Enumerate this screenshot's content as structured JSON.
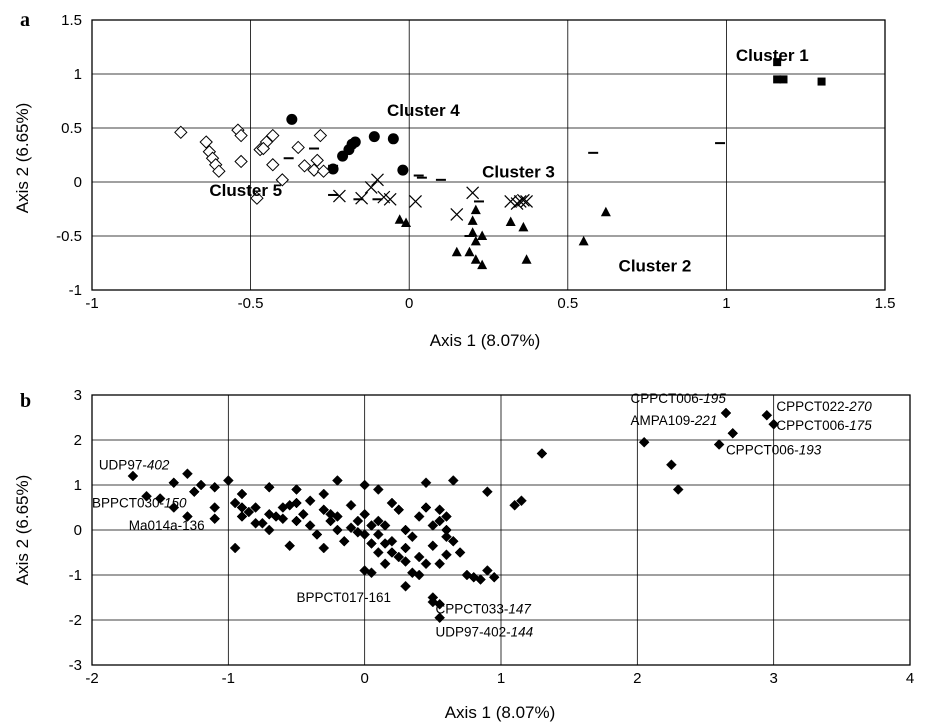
{
  "chart_data": [
    {
      "panel": "a",
      "type": "scatter",
      "xlabel": "Axis 1 (8.07%)",
      "ylabel": "Axis 2 (6.65%)",
      "xlim": [
        -1,
        1.5
      ],
      "ylim": [
        -1,
        1.5
      ],
      "xticks": [
        -1,
        -0.5,
        0,
        0.5,
        1,
        1.5
      ],
      "yticks": [
        -1,
        -0.5,
        0,
        0.5,
        1,
        1.5
      ],
      "xtick_labels": [
        "-1",
        "-0.5",
        "0",
        "0.5",
        "1",
        "1.5"
      ],
      "ytick_labels": [
        "-1",
        "-0.5",
        "0",
        "0.5",
        "1",
        "1.5"
      ],
      "grid": true,
      "series": [
        {
          "name": "Cluster 1",
          "marker": "square",
          "points": [
            [
              1.16,
              1.11
            ],
            [
              1.16,
              0.95
            ],
            [
              1.18,
              0.95
            ],
            [
              1.3,
              0.93
            ]
          ]
        },
        {
          "name": "Cluster 2",
          "marker": "triangle",
          "points": [
            [
              0.55,
              -0.55
            ],
            [
              0.62,
              -0.28
            ],
            [
              0.37,
              -0.72
            ],
            [
              0.36,
              -0.42
            ],
            [
              0.32,
              -0.37
            ],
            [
              0.21,
              -0.72
            ],
            [
              0.23,
              -0.77
            ],
            [
              0.19,
              -0.65
            ],
            [
              0.21,
              -0.55
            ],
            [
              0.2,
              -0.47
            ],
            [
              0.23,
              -0.5
            ],
            [
              0.2,
              -0.36
            ],
            [
              0.21,
              -0.26
            ],
            [
              0.15,
              -0.65
            ],
            [
              -0.03,
              -0.35
            ],
            [
              -0.01,
              -0.38
            ]
          ]
        },
        {
          "name": "Cluster 3",
          "marker": "cross",
          "points": [
            [
              -0.22,
              -0.13
            ],
            [
              -0.15,
              -0.15
            ],
            [
              -0.12,
              -0.05
            ],
            [
              -0.1,
              0.02
            ],
            [
              -0.08,
              -0.14
            ],
            [
              -0.06,
              -0.16
            ],
            [
              0.02,
              -0.18
            ],
            [
              0.15,
              -0.3
            ],
            [
              0.2,
              -0.1
            ],
            [
              0.32,
              -0.18
            ],
            [
              0.35,
              -0.18
            ],
            [
              0.36,
              -0.17
            ],
            [
              0.37,
              -0.18
            ],
            [
              0.34,
              -0.2
            ]
          ]
        },
        {
          "name": "Cluster 4",
          "marker": "circle",
          "points": [
            [
              -0.37,
              0.58
            ],
            [
              -0.24,
              0.12
            ],
            [
              -0.21,
              0.24
            ],
            [
              -0.19,
              0.3
            ],
            [
              -0.18,
              0.35
            ],
            [
              -0.17,
              0.37
            ],
            [
              -0.11,
              0.42
            ],
            [
              -0.05,
              0.4
            ],
            [
              -0.02,
              0.11
            ]
          ]
        },
        {
          "name": "Cluster 5",
          "marker": "diamond",
          "points": [
            [
              -0.72,
              0.46
            ],
            [
              -0.64,
              0.37
            ],
            [
              -0.63,
              0.28
            ],
            [
              -0.62,
              0.22
            ],
            [
              -0.61,
              0.16
            ],
            [
              -0.6,
              0.1
            ],
            [
              -0.54,
              0.48
            ],
            [
              -0.53,
              0.43
            ],
            [
              -0.53,
              0.19
            ],
            [
              -0.47,
              0.3
            ],
            [
              -0.45,
              0.37
            ],
            [
              -0.43,
              0.43
            ],
            [
              -0.43,
              0.16
            ],
            [
              -0.4,
              0.02
            ],
            [
              -0.35,
              0.32
            ],
            [
              -0.33,
              0.15
            ],
            [
              -0.3,
              0.11
            ],
            [
              -0.29,
              0.2
            ],
            [
              -0.27,
              0.1
            ],
            [
              -0.28,
              0.43
            ],
            [
              -0.48,
              -0.15
            ],
            [
              -0.46,
              0.31
            ]
          ]
        },
        {
          "name": "",
          "marker": "dash",
          "points": [
            [
              -0.38,
              0.22
            ],
            [
              -0.3,
              0.31
            ],
            [
              -0.24,
              0.15
            ],
            [
              -0.24,
              -0.12
            ],
            [
              -0.16,
              -0.16
            ],
            [
              -0.1,
              -0.16
            ],
            [
              0.04,
              0.04
            ],
            [
              0.1,
              0.02
            ],
            [
              0.03,
              0.06
            ],
            [
              0.22,
              -0.18
            ],
            [
              0.19,
              -0.5
            ],
            [
              0.58,
              0.27
            ],
            [
              0.98,
              0.36
            ]
          ]
        }
      ],
      "annotations": [
        {
          "text": "Cluster 1",
          "x": 1.03,
          "y": 1.12
        },
        {
          "text": "Cluster 4",
          "x": -0.07,
          "y": 0.61
        },
        {
          "text": "Cluster 3",
          "x": 0.23,
          "y": 0.04
        },
        {
          "text": "Cluster 2",
          "x": 0.66,
          "y": -0.83
        },
        {
          "text": "Cluster 5",
          "x": -0.63,
          "y": -0.13
        }
      ]
    },
    {
      "panel": "b",
      "type": "scatter",
      "xlabel": "Axis 1 (8.07%)",
      "ylabel": "Axis 2 (6.65%)",
      "xlim": [
        -2,
        4
      ],
      "ylim": [
        -3,
        3
      ],
      "xticks": [
        -2,
        -1,
        0,
        1,
        2,
        3,
        4
      ],
      "yticks": [
        -3,
        -2,
        -1,
        0,
        1,
        2,
        3
      ],
      "xtick_labels": [
        "-2",
        "-1",
        "0",
        "1",
        "2",
        "3",
        "4"
      ],
      "ytick_labels": [
        "-3",
        "-2",
        "-1",
        "0",
        "1",
        "2",
        "3"
      ],
      "grid": true,
      "series": [
        {
          "name": "",
          "marker": "diamond",
          "points": [
            [
              -1.7,
              1.2
            ],
            [
              -1.3,
              1.25
            ],
            [
              -1.4,
              1.05
            ],
            [
              -1.2,
              1.0
            ],
            [
              -1.25,
              0.85
            ],
            [
              -1.1,
              0.95
            ],
            [
              -1.6,
              0.75
            ],
            [
              -1.5,
              0.7
            ],
            [
              -1.1,
              0.5
            ],
            [
              -1.4,
              0.5
            ],
            [
              -1.3,
              0.3
            ],
            [
              -1.1,
              0.25
            ],
            [
              -1.0,
              1.1
            ],
            [
              -0.9,
              0.8
            ],
            [
              -0.9,
              0.5
            ],
            [
              -0.9,
              0.3
            ],
            [
              -0.8,
              0.5
            ],
            [
              -0.8,
              0.15
            ],
            [
              -0.7,
              0.95
            ],
            [
              -0.7,
              0.35
            ],
            [
              -0.6,
              0.5
            ],
            [
              -0.6,
              0.25
            ],
            [
              -0.5,
              0.9
            ],
            [
              -0.5,
              0.2
            ],
            [
              -0.4,
              0.65
            ],
            [
              -0.4,
              0.1
            ],
            [
              -0.3,
              0.8
            ],
            [
              -0.3,
              0.45
            ],
            [
              -0.25,
              0.2
            ],
            [
              -0.2,
              1.1
            ],
            [
              -0.2,
              0.0
            ],
            [
              -0.1,
              0.55
            ],
            [
              -0.05,
              0.2
            ],
            [
              -0.95,
              -0.4
            ],
            [
              -0.7,
              0.0
            ],
            [
              -0.55,
              -0.35
            ],
            [
              -0.35,
              -0.1
            ],
            [
              -0.3,
              -0.4
            ],
            [
              -0.15,
              -0.25
            ],
            [
              0.0,
              1.0
            ],
            [
              0.1,
              0.9
            ],
            [
              0.0,
              0.35
            ],
            [
              0.1,
              0.2
            ],
            [
              0.15,
              0.1
            ],
            [
              0.0,
              -0.1
            ],
            [
              0.05,
              -0.3
            ],
            [
              0.1,
              -0.5
            ],
            [
              0.2,
              -0.25
            ],
            [
              0.25,
              -0.6
            ],
            [
              0.0,
              -0.9
            ],
            [
              0.05,
              -0.95
            ],
            [
              0.15,
              -0.75
            ],
            [
              0.3,
              0.0
            ],
            [
              0.3,
              -0.4
            ],
            [
              0.35,
              -0.15
            ],
            [
              0.4,
              0.3
            ],
            [
              0.4,
              -0.6
            ],
            [
              0.45,
              0.5
            ],
            [
              0.5,
              0.1
            ],
            [
              0.5,
              -0.35
            ],
            [
              0.55,
              0.2
            ],
            [
              0.6,
              0.0
            ],
            [
              0.6,
              -0.55
            ],
            [
              0.65,
              -0.25
            ],
            [
              0.7,
              -0.5
            ],
            [
              0.3,
              -1.25
            ],
            [
              0.5,
              -1.5
            ],
            [
              0.5,
              -1.6
            ],
            [
              0.55,
              -1.65
            ],
            [
              0.35,
              -0.95
            ],
            [
              0.4,
              -1.0
            ],
            [
              0.25,
              0.45
            ],
            [
              0.2,
              0.6
            ],
            [
              0.75,
              -1.0
            ],
            [
              0.8,
              -1.05
            ],
            [
              0.85,
              -1.1
            ],
            [
              0.9,
              -0.9
            ],
            [
              0.95,
              -1.05
            ],
            [
              0.9,
              0.85
            ],
            [
              0.45,
              1.05
            ],
            [
              0.55,
              0.45
            ],
            [
              0.6,
              0.3
            ],
            [
              0.65,
              1.1
            ],
            [
              0.6,
              -0.15
            ],
            [
              0.55,
              -0.75
            ],
            [
              0.45,
              -0.75
            ],
            [
              0.3,
              -0.7
            ],
            [
              0.2,
              -0.5
            ],
            [
              0.15,
              -0.3
            ],
            [
              0.1,
              -0.1
            ],
            [
              0.05,
              0.1
            ],
            [
              -0.05,
              -0.05
            ],
            [
              -0.1,
              0.05
            ],
            [
              -0.2,
              0.3
            ],
            [
              -0.25,
              0.35
            ],
            [
              -0.45,
              0.35
            ],
            [
              -0.5,
              0.6
            ],
            [
              -0.55,
              0.55
            ],
            [
              -0.65,
              0.3
            ],
            [
              -0.75,
              0.15
            ],
            [
              -0.85,
              0.4
            ],
            [
              -0.95,
              0.6
            ],
            [
              1.1,
              0.55
            ],
            [
              1.15,
              0.65
            ],
            [
              1.3,
              1.7
            ],
            [
              0.55,
              -1.95
            ],
            [
              2.05,
              1.95
            ],
            [
              2.25,
              1.45
            ],
            [
              2.3,
              0.9
            ],
            [
              2.6,
              1.9
            ],
            [
              2.65,
              2.6
            ],
            [
              2.7,
              2.15
            ],
            [
              2.95,
              2.55
            ],
            [
              3.0,
              2.35
            ]
          ]
        }
      ],
      "annotations": [
        {
          "text": "UDP97-",
          "italic": "402",
          "x": -1.95,
          "y": 1.35
        },
        {
          "text": "BPPCT030-",
          "italic": "150",
          "x": -2.0,
          "y": 0.5
        },
        {
          "text": "Ma014a-136",
          "x": -1.73,
          "y": 0.0
        },
        {
          "text": "BPPCT017-161",
          "x": -0.5,
          "y": -1.6
        },
        {
          "text": "CPPCT033-",
          "italic": "147",
          "x": 0.52,
          "y": -1.85
        },
        {
          "text": "UDP97-402-",
          "italic": "144",
          "x": 0.52,
          "y": -2.37
        },
        {
          "text": "CPPCT006-",
          "italic": "195",
          "x": 1.95,
          "y": 2.82
        },
        {
          "text": "AMPA109-",
          "italic": "221",
          "x": 1.95,
          "y": 2.33
        },
        {
          "text": "CPPCT022-",
          "italic": "270",
          "x": 3.02,
          "y": 2.65
        },
        {
          "text": "CPPCT006-",
          "italic": "175",
          "x": 3.02,
          "y": 2.22
        },
        {
          "text": "CPPCT006-",
          "italic": "193",
          "x": 2.65,
          "y": 1.68
        }
      ]
    }
  ]
}
